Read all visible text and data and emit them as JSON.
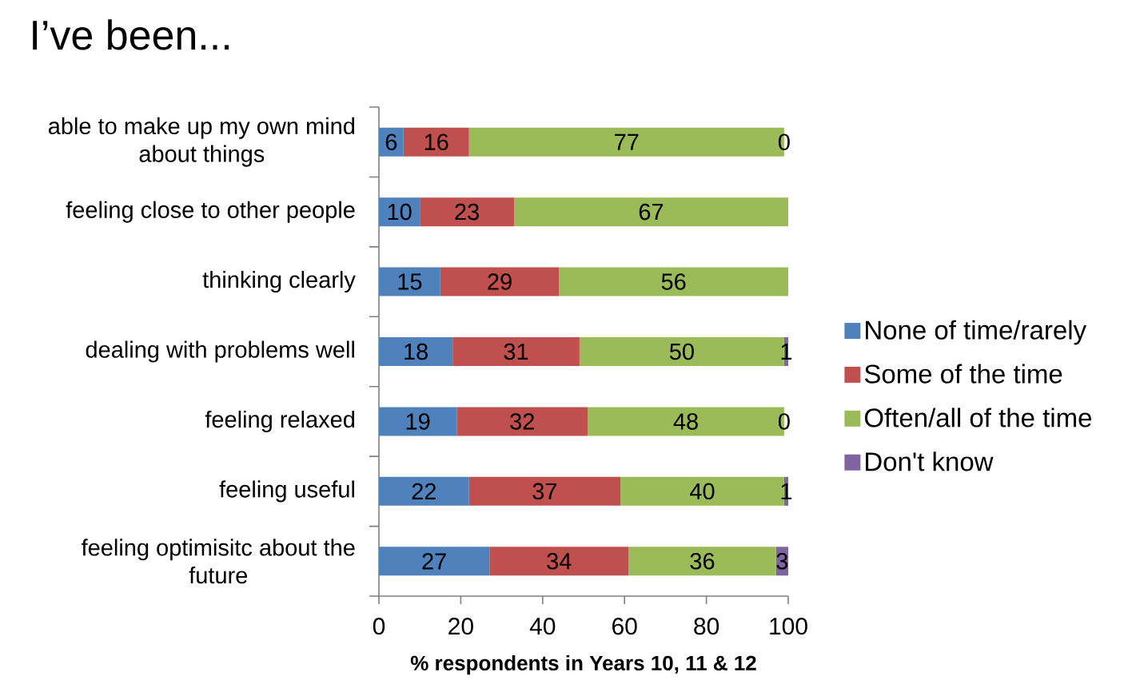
{
  "chart_data": {
    "type": "bar",
    "orientation": "horizontal",
    "stacked": true,
    "title": "I’ve been...",
    "xlabel": "% respondents in Years 10, 11 & 12",
    "categories": [
      "able to make up my own mind about things",
      "feeling close to other people",
      "thinking clearly",
      "dealing with problems well",
      "feeling relaxed",
      "feeling useful",
      "feeling optimisitc about the future"
    ],
    "series": [
      {
        "name": "None of time/rarely",
        "color": "#4f81bd",
        "values": [
          6,
          10,
          15,
          18,
          19,
          22,
          27
        ],
        "value_labels": [
          "6",
          "10",
          "15",
          "18",
          "19",
          "22",
          "27"
        ]
      },
      {
        "name": "Some of the time",
        "color": "#c0504d",
        "values": [
          16,
          23,
          29,
          31,
          32,
          37,
          34
        ],
        "value_labels": [
          "16",
          "23",
          "29",
          "31",
          "32",
          "37",
          "34"
        ]
      },
      {
        "name": "Often/all of the time",
        "color": "#9bbb59",
        "values": [
          77,
          67,
          56,
          50,
          48,
          40,
          36
        ],
        "value_labels": [
          "77",
          "67",
          "56",
          "50",
          "48",
          "40",
          "36"
        ]
      },
      {
        "name": "Don't know",
        "color": "#8064a2",
        "values": [
          0,
          0,
          0,
          1,
          0,
          1,
          3
        ],
        "value_labels": [
          "0",
          null,
          null,
          "1",
          "0",
          "1",
          "3"
        ]
      }
    ],
    "xlim": [
      0,
      100
    ],
    "xticks": [
      0,
      20,
      40,
      60,
      80,
      100
    ],
    "legend": "right"
  }
}
